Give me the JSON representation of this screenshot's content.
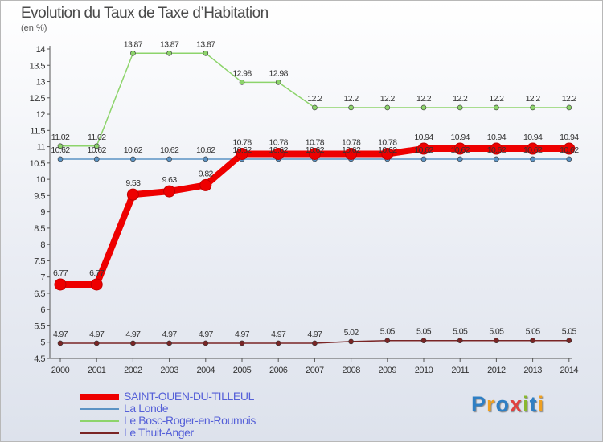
{
  "title": "Evolution du Taux de Taxe d’Habitation",
  "subtitle": "(en %)",
  "logo": {
    "text": "Proxiti",
    "colors": [
      "#2f7fc4",
      "#f0a020",
      "#2f7fc4",
      "#e04040",
      "#8ab830",
      "#2f7fc4",
      "#f0a020"
    ]
  },
  "chart_data": {
    "type": "line",
    "title": "Evolution du Taux de Taxe d’Habitation",
    "ylabel": "(en %)",
    "xlabel": "",
    "x": [
      2000,
      2001,
      2002,
      2003,
      2004,
      2005,
      2006,
      2007,
      2008,
      2009,
      2010,
      2011,
      2012,
      2013,
      2014
    ],
    "ylim": [
      4.5,
      14
    ],
    "yticks": [
      4.5,
      5,
      5.5,
      6,
      6.5,
      7,
      7.5,
      8,
      8.5,
      9,
      9.5,
      10,
      10.5,
      11,
      11.5,
      12,
      12.5,
      13,
      13.5,
      14
    ],
    "grid": false,
    "legend": "bottom-left",
    "series": [
      {
        "name": "SAINT-OUEN-DU-TILLEUL",
        "color": "#ee0000",
        "width": 8,
        "marker": 7,
        "values": [
          6.77,
          6.77,
          9.53,
          9.63,
          9.82,
          10.78,
          10.78,
          10.78,
          10.78,
          10.78,
          10.94,
          10.94,
          10.94,
          10.94,
          10.94
        ]
      },
      {
        "name": "La Londe",
        "color": "#5b93c4",
        "width": 1.5,
        "marker": 3,
        "values": [
          10.62,
          10.62,
          10.62,
          10.62,
          10.62,
          10.62,
          10.62,
          10.62,
          10.62,
          10.62,
          10.62,
          10.62,
          10.62,
          10.62,
          10.62
        ]
      },
      {
        "name": "Le Bosc-Roger-en-Roumois",
        "color": "#8dd46b",
        "width": 1.5,
        "marker": 3,
        "values": [
          11.02,
          11.02,
          13.87,
          13.87,
          13.87,
          12.98,
          12.98,
          12.2,
          12.2,
          12.2,
          12.2,
          12.2,
          12.2,
          12.2,
          12.2
        ]
      },
      {
        "name": "Le Thuit-Anger",
        "color": "#7a2525",
        "width": 1.5,
        "marker": 3,
        "values": [
          4.97,
          4.97,
          4.97,
          4.97,
          4.97,
          4.97,
          4.97,
          4.97,
          5.02,
          5.05,
          5.05,
          5.05,
          5.05,
          5.05,
          5.05
        ]
      }
    ]
  }
}
